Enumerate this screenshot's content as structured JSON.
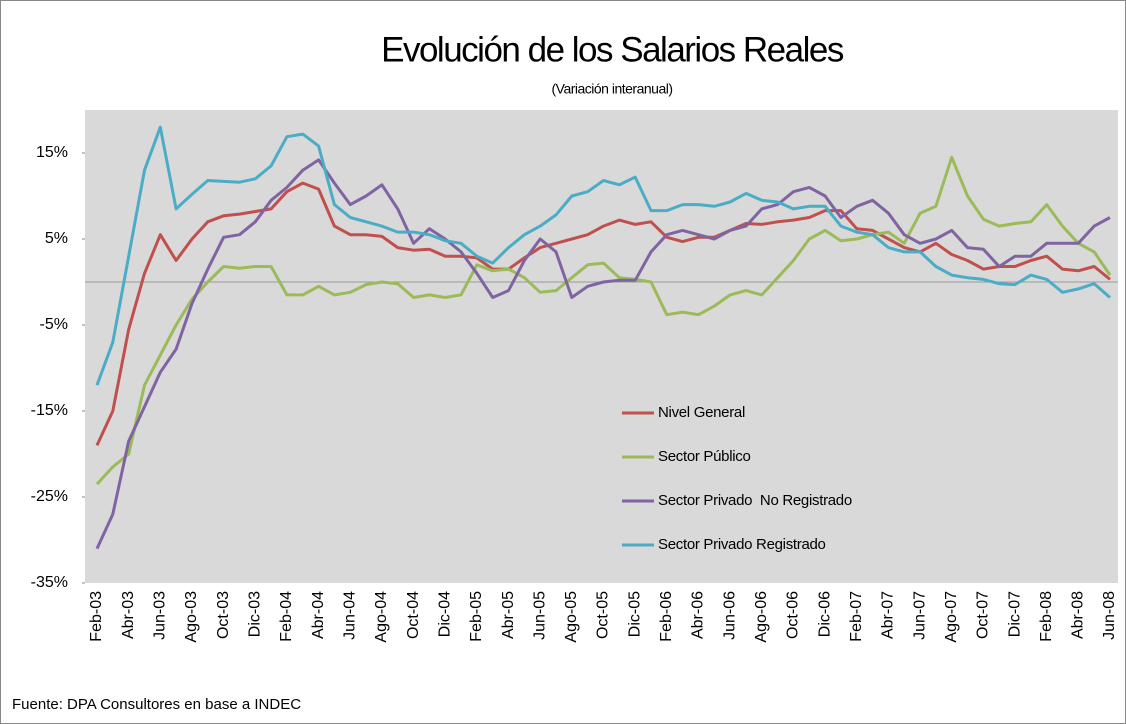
{
  "chart_data": {
    "type": "line",
    "title": "Evolución de los Salarios Reales",
    "subtitle": "(Variación interanual)",
    "source": "Fuente: DPA Consultores en base a INDEC",
    "categories": [
      "Feb-03",
      null,
      "Abr-03",
      null,
      "Jun-03",
      null,
      "Ago-03",
      null,
      "Oct-03",
      null,
      "Dic-03",
      null,
      "Feb-04",
      null,
      "Abr-04",
      null,
      "Jun-04",
      null,
      "Ago-04",
      null,
      "Oct-04",
      null,
      "Dic-04",
      null,
      "Feb-05",
      null,
      "Abr-05",
      null,
      "Jun-05",
      null,
      "Ago-05",
      null,
      "Oct-05",
      null,
      "Dic-05",
      null,
      "Feb-06",
      null,
      "Abr-06",
      null,
      "Jun-06",
      null,
      "Ago-06",
      null,
      "Oct-06",
      null,
      "Dic-06",
      null,
      "Feb-07",
      null,
      "Abr-07",
      null,
      "Jun-07",
      null,
      "Ago-07",
      null,
      "Oct-07",
      null,
      "Dic-07",
      null,
      "Feb-08",
      null,
      "Abr-08",
      null,
      "Jun-08"
    ],
    "series": [
      {
        "name": "Nivel General",
        "color": "#c0504d",
        "values": [
          -19,
          -15,
          -5.5,
          1,
          5.5,
          2.5,
          5,
          7,
          7.7,
          7.9,
          8.2,
          8.5,
          10.5,
          11.5,
          10.8,
          6.5,
          5.5,
          5.5,
          5.3,
          4,
          3.7,
          3.8,
          3,
          3,
          2.8,
          1.5,
          1.5,
          2.8,
          4,
          4.5,
          5,
          5.5,
          6.5,
          7.2,
          6.7,
          7,
          5.2,
          4.7,
          5.2,
          5.2,
          6,
          6.8,
          6.7,
          7,
          7.2,
          7.5,
          8.3,
          8.3,
          6.2,
          6,
          5,
          4,
          3.5,
          4.5,
          3.2,
          2.5,
          1.5,
          1.8,
          1.8,
          2.5,
          3,
          1.5,
          1.3,
          1.8,
          0.3
        ]
      },
      {
        "name": "Sector Público",
        "color": "#9bbb59",
        "values": [
          -23.5,
          -21.5,
          -20,
          -12,
          -8.5,
          -5,
          -2,
          0,
          1.8,
          1.6,
          1.8,
          1.8,
          -1.5,
          -1.5,
          -0.5,
          -1.5,
          -1.2,
          -0.3,
          0,
          -0.2,
          -1.8,
          -1.5,
          -1.8,
          -1.5,
          2,
          1.3,
          1.5,
          0.5,
          -1.2,
          -1,
          0.5,
          2,
          2.2,
          0.5,
          0.3,
          0,
          -3.8,
          -3.5,
          -3.8,
          -2.8,
          -1.5,
          -1,
          -1.5,
          0.5,
          2.5,
          5,
          6,
          4.8,
          5,
          5.5,
          5.8,
          4.5,
          8,
          8.8,
          14.5,
          10,
          7.3,
          6.5,
          6.8,
          7,
          9,
          6.5,
          4.5,
          3.5,
          0.8
        ]
      },
      {
        "name": "Sector Privado  No Registrado",
        "color": "#8064a2",
        "values": [
          -31,
          -27,
          -18.5,
          -14.5,
          -10.5,
          -7.8,
          -2.5,
          1.5,
          5.2,
          5.5,
          7,
          9.5,
          11,
          13,
          14.2,
          11.5,
          9,
          10,
          11.3,
          8.5,
          4.5,
          6.2,
          5,
          3.5,
          1,
          -1.8,
          -1,
          2.5,
          5,
          3.5,
          -1.8,
          -0.5,
          0,
          0.2,
          0.2,
          3.5,
          5.5,
          6,
          5.5,
          5,
          6,
          6.5,
          8.5,
          9,
          10.5,
          11,
          10,
          7.5,
          8.8,
          9.5,
          8,
          5.5,
          4.5,
          5,
          6,
          4,
          3.8,
          1.8,
          3,
          3,
          4.5,
          4.5,
          4.5,
          6.5,
          7.5
        ]
      },
      {
        "name": "Sector Privado Registrado",
        "color": "#4bacc6",
        "values": [
          -12,
          -7,
          3,
          13,
          18,
          8.5,
          10.2,
          11.8,
          11.7,
          11.6,
          12,
          13.5,
          16.9,
          17.2,
          15.8,
          9,
          7.5,
          7,
          6.5,
          5.8,
          5.8,
          5.5,
          4.8,
          4.5,
          3,
          2.2,
          4,
          5.5,
          6.5,
          7.8,
          10,
          10.5,
          11.8,
          11.3,
          12.2,
          8.3,
          8.3,
          9,
          9,
          8.8,
          9.3,
          10.3,
          9.5,
          9.3,
          8.5,
          8.8,
          8.8,
          6.5,
          5.8,
          5.5,
          4,
          3.5,
          3.5,
          1.8,
          0.8,
          0.5,
          0.3,
          -0.2,
          -0.3,
          0.8,
          0.3,
          -1.2,
          -0.8,
          -0.2,
          -1.8
        ]
      }
    ],
    "ylim": [
      -35,
      20
    ],
    "yticks": [
      {
        "value": -35,
        "label": "-35%"
      },
      {
        "value": -25,
        "label": "-25%"
      },
      {
        "value": -15,
        "label": "-15%"
      },
      {
        "value": -5,
        "label": "-5%"
      },
      {
        "value": 5,
        "label": "5%"
      },
      {
        "value": 15,
        "label": "15%"
      }
    ],
    "zero_line": true,
    "legend": "lower-center"
  }
}
